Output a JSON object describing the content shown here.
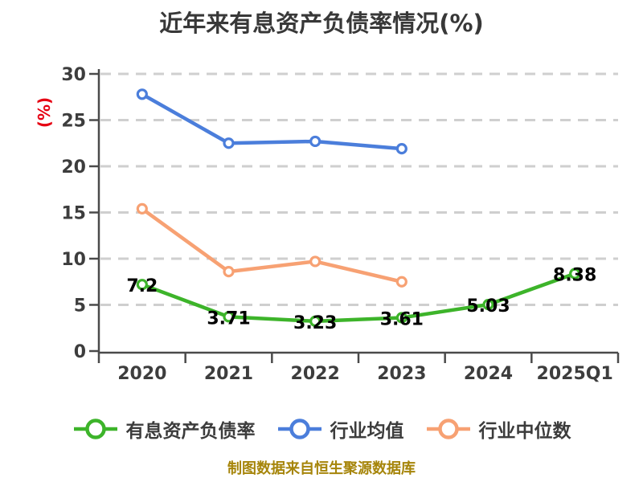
{
  "title": "近年来有息资产负债率情况(%)",
  "footer_note": "制图数据来自恒生聚源数据库",
  "colors": {
    "background": "#ffffff",
    "title_text": "#383838",
    "axis_line": "#4a4a4a",
    "tick_label": "#3d3d3d",
    "gridline": "#cfcfcf",
    "ylabel_text": "#e60012",
    "data_label": "#000000",
    "legend_text": "#3c3c3c",
    "footer_text": "#a6850a",
    "series_main": "#3db42a",
    "series_avg": "#4b7edb",
    "series_median": "#f7a173",
    "point_fill": "#ffffff"
  },
  "chart_data": {
    "type": "line",
    "title": "近年来有息资产负债率情况(%)",
    "xlabel": "",
    "ylabel": "(%)",
    "categories": [
      "2020",
      "2021",
      "2022",
      "2023",
      "2024",
      "2025Q1"
    ],
    "ylim": [
      0,
      30
    ],
    "yticks": [
      0,
      5,
      10,
      15,
      20,
      25,
      30
    ],
    "grid": "horizontal-dashed",
    "legend_position": "bottom",
    "series": [
      {
        "name": "有息资产负债率",
        "color": "#3db42a",
        "values": [
          7.2,
          3.71,
          3.23,
          3.61,
          5.03,
          8.38
        ],
        "data_labels": [
          "7.2",
          "3.71",
          "3.23",
          "3.61",
          "5.03",
          "8.38"
        ]
      },
      {
        "name": "行业均值",
        "color": "#4b7edb",
        "values": [
          27.8,
          22.5,
          22.7,
          21.9,
          null,
          null
        ],
        "data_labels": null
      },
      {
        "name": "行业中位数",
        "color": "#f7a173",
        "values": [
          15.4,
          8.6,
          9.7,
          7.5,
          null,
          null
        ],
        "data_labels": null
      }
    ]
  }
}
